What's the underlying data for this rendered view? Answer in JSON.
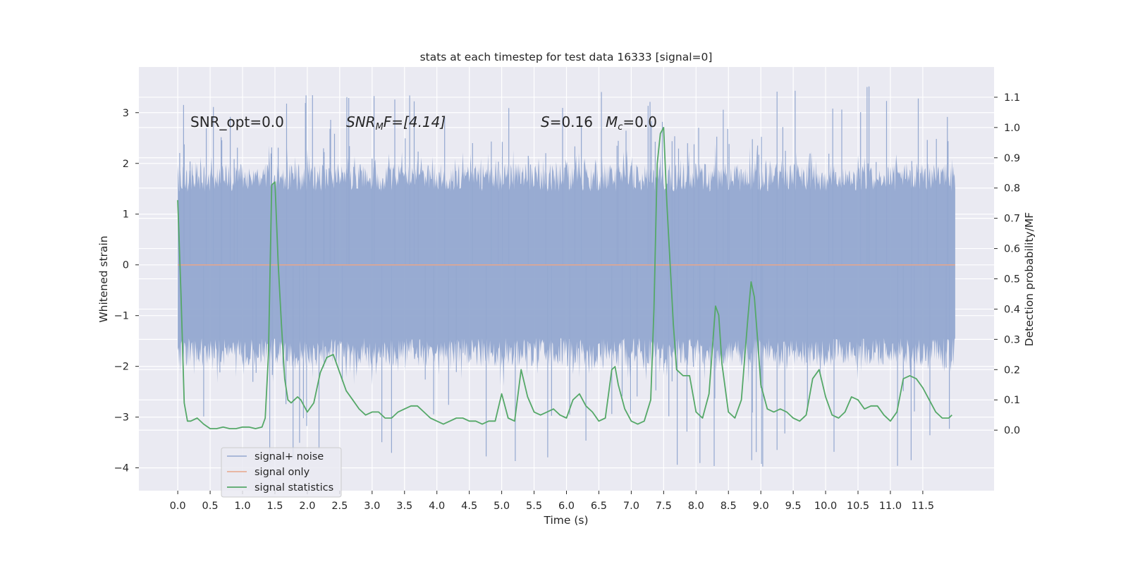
{
  "chart_data": {
    "type": "line",
    "title": "stats at each timestep for test data 16333 [signal=0]",
    "xlabel": "Time (s)",
    "ylabel": "Whitened strain",
    "ylabel_right": "Detection probability/MF",
    "xlim": [
      -0.6,
      12.6
    ],
    "ylim": [
      -4.45,
      3.9
    ],
    "ylim_right": [
      -0.2,
      1.2
    ],
    "x_ticks": [
      "0.0",
      "0.5",
      "1.0",
      "1.5",
      "2.0",
      "2.5",
      "3.0",
      "3.5",
      "4.0",
      "4.5",
      "5.0",
      "5.5",
      "6.0",
      "6.5",
      "7.0",
      "7.5",
      "8.0",
      "8.5",
      "9.0",
      "9.5",
      "10.0",
      "10.5",
      "11.0",
      "11.5"
    ],
    "y_ticks": [
      "3",
      "2",
      "1",
      "0",
      "−1",
      "−2",
      "−3",
      "−4"
    ],
    "y_ticks_right": [
      "1.1",
      "1.0",
      "0.9",
      "0.8",
      "0.7",
      "0.6",
      "0.5",
      "0.4",
      "0.3",
      "0.2",
      "0.1",
      "0.0"
    ],
    "grid": true,
    "legend_position": "lower-left",
    "annotations": {
      "snr_opt": "SNR_opt=0.0",
      "snr_mf_prefix": "SNR",
      "snr_mf_sub": "M",
      "snr_mf_suffix": "F=[4.14]",
      "s_prefix": "S",
      "s_value": "=0.16",
      "mc_prefix": "M",
      "mc_sub": "c",
      "mc_value": "=0.0"
    },
    "series": [
      {
        "name": "signal+ noise",
        "color": "#94a8d0",
        "axis": "left",
        "x_range": [
          0.0,
          12.0
        ],
        "typical_range": [
          -2.0,
          2.0
        ],
        "extreme_range": [
          -4.05,
          3.55
        ]
      },
      {
        "name": "signal only",
        "color": "#e8a68a",
        "axis": "left",
        "x": [
          0.0,
          12.0
        ],
        "y": [
          0.0,
          0.0
        ]
      },
      {
        "name": "signal statistics",
        "color": "#55a868",
        "axis": "right",
        "x": [
          0.0,
          0.05,
          0.1,
          0.15,
          0.2,
          0.3,
          0.4,
          0.5,
          0.6,
          0.7,
          0.8,
          0.9,
          1.0,
          1.1,
          1.2,
          1.3,
          1.35,
          1.4,
          1.45,
          1.5,
          1.55,
          1.6,
          1.65,
          1.7,
          1.75,
          1.8,
          1.85,
          1.9,
          1.95,
          2.0,
          2.1,
          2.2,
          2.3,
          2.4,
          2.45,
          2.5,
          2.6,
          2.7,
          2.8,
          2.9,
          3.0,
          3.1,
          3.2,
          3.3,
          3.4,
          3.5,
          3.6,
          3.7,
          3.8,
          3.9,
          4.0,
          4.1,
          4.2,
          4.3,
          4.4,
          4.5,
          4.6,
          4.7,
          4.8,
          4.9,
          5.0,
          5.1,
          5.2,
          5.3,
          5.4,
          5.5,
          5.6,
          5.7,
          5.8,
          5.9,
          6.0,
          6.1,
          6.2,
          6.3,
          6.4,
          6.5,
          6.6,
          6.7,
          6.75,
          6.8,
          6.9,
          7.0,
          7.1,
          7.2,
          7.3,
          7.35,
          7.4,
          7.45,
          7.5,
          7.55,
          7.6,
          7.65,
          7.7,
          7.8,
          7.9,
          8.0,
          8.1,
          8.2,
          8.3,
          8.35,
          8.4,
          8.5,
          8.6,
          8.7,
          8.8,
          8.85,
          8.9,
          8.95,
          9.0,
          9.1,
          9.2,
          9.3,
          9.4,
          9.5,
          9.6,
          9.7,
          9.8,
          9.9,
          10.0,
          10.1,
          10.2,
          10.3,
          10.4,
          10.5,
          10.6,
          10.7,
          10.8,
          10.9,
          11.0,
          11.1,
          11.2,
          11.3,
          11.4,
          11.5,
          11.6,
          11.7,
          11.8,
          11.9,
          11.95
        ],
        "y": [
          0.76,
          0.45,
          0.09,
          0.03,
          0.03,
          0.04,
          0.02,
          0.005,
          0.005,
          0.01,
          0.005,
          0.005,
          0.01,
          0.01,
          0.005,
          0.01,
          0.04,
          0.25,
          0.81,
          0.82,
          0.55,
          0.35,
          0.17,
          0.1,
          0.09,
          0.1,
          0.11,
          0.1,
          0.08,
          0.06,
          0.09,
          0.19,
          0.24,
          0.25,
          0.22,
          0.19,
          0.13,
          0.1,
          0.07,
          0.05,
          0.06,
          0.06,
          0.04,
          0.04,
          0.06,
          0.07,
          0.08,
          0.08,
          0.06,
          0.04,
          0.03,
          0.02,
          0.03,
          0.04,
          0.04,
          0.03,
          0.03,
          0.02,
          0.03,
          0.03,
          0.12,
          0.04,
          0.03,
          0.2,
          0.11,
          0.06,
          0.05,
          0.06,
          0.07,
          0.05,
          0.04,
          0.1,
          0.12,
          0.08,
          0.06,
          0.03,
          0.04,
          0.2,
          0.21,
          0.15,
          0.07,
          0.03,
          0.02,
          0.03,
          0.1,
          0.4,
          0.88,
          0.98,
          1.0,
          0.75,
          0.55,
          0.35,
          0.2,
          0.18,
          0.18,
          0.06,
          0.04,
          0.12,
          0.41,
          0.38,
          0.22,
          0.06,
          0.04,
          0.1,
          0.37,
          0.49,
          0.44,
          0.3,
          0.15,
          0.07,
          0.06,
          0.07,
          0.06,
          0.04,
          0.03,
          0.05,
          0.17,
          0.2,
          0.11,
          0.05,
          0.04,
          0.06,
          0.11,
          0.1,
          0.07,
          0.08,
          0.08,
          0.05,
          0.03,
          0.06,
          0.17,
          0.18,
          0.17,
          0.14,
          0.1,
          0.06,
          0.04,
          0.04,
          0.05
        ]
      }
    ]
  }
}
